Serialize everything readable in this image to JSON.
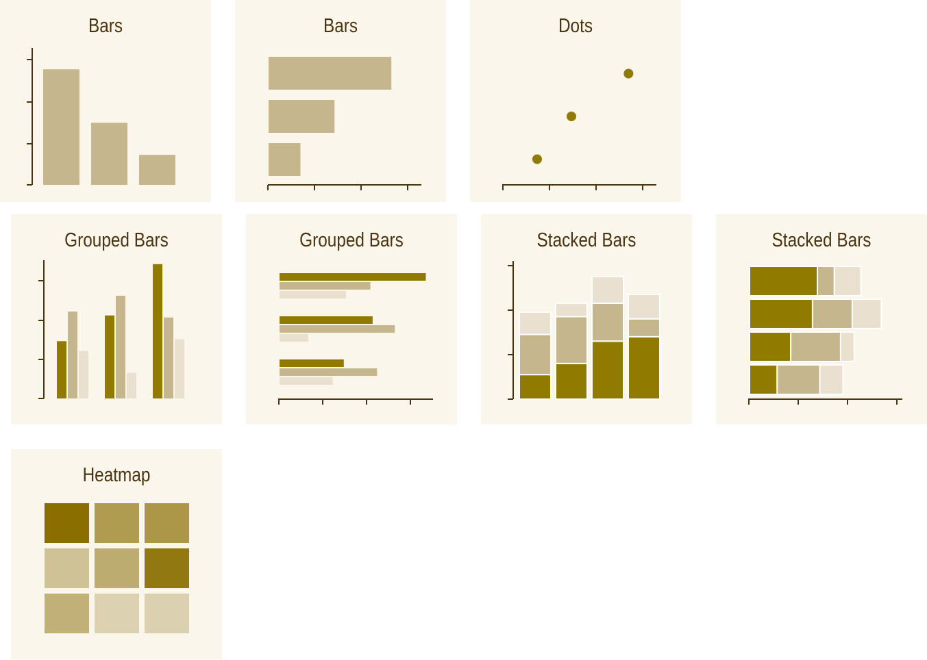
{
  "colors": {
    "panel_bg": "#fbf6ec",
    "axis": "#4a3410",
    "title": "#4a3410",
    "dark": "#917a00",
    "mid": "#c5b68e",
    "light": "#e9e0cf"
  },
  "chart_data": [
    {
      "type": "bar",
      "title": "Bars",
      "orientation": "vertical",
      "categories": [
        "",
        "",
        ""
      ],
      "values": [
        2.7,
        1.45,
        0.7
      ],
      "ylim": [
        0,
        3.2
      ],
      "grid": false
    },
    {
      "type": "bar",
      "title": "Bars",
      "orientation": "horizontal",
      "categories": [
        "",
        "",
        ""
      ],
      "values": [
        2.7,
        1.45,
        0.7
      ],
      "xlim": [
        0,
        3.3
      ],
      "grid": false
    },
    {
      "type": "scatter",
      "title": "Dots",
      "x": [
        0.75,
        1.5,
        2.75
      ],
      "y": [
        0.6,
        1.6,
        2.6
      ],
      "xlim": [
        0,
        3.3
      ],
      "ylim": [
        0,
        3.2
      ],
      "grid": false
    },
    {
      "type": "bar",
      "title": "Grouped Bars",
      "orientation": "vertical",
      "categories": [
        "",
        "",
        ""
      ],
      "series": [
        {
          "values": [
            1.45,
            2.1,
            3.4
          ]
        },
        {
          "values": [
            2.2,
            2.6,
            2.05
          ]
        },
        {
          "values": [
            1.2,
            0.65,
            1.5
          ]
        }
      ],
      "ylim": [
        0,
        3.5
      ],
      "grid": false
    },
    {
      "type": "bar",
      "title": "Grouped Bars",
      "orientation": "horizontal",
      "categories": [
        "",
        "",
        ""
      ],
      "series": [
        {
          "values": [
            3.3,
            2.1,
            1.45
          ]
        },
        {
          "values": [
            2.05,
            2.6,
            2.2
          ]
        },
        {
          "values": [
            1.5,
            0.65,
            1.2
          ]
        }
      ],
      "xlim": [
        0,
        3.5
      ],
      "grid": false
    },
    {
      "type": "bar",
      "title": "Stacked Bars",
      "orientation": "vertical",
      "stacked": true,
      "categories": [
        "",
        "",
        "",
        ""
      ],
      "series": [
        {
          "values": [
            0.55,
            0.8,
            1.3,
            1.4
          ]
        },
        {
          "values": [
            0.9,
            1.05,
            0.85,
            0.4
          ]
        },
        {
          "values": [
            0.5,
            0.3,
            0.6,
            0.55
          ]
        }
      ],
      "ylim": [
        0,
        3.1
      ],
      "grid": false
    },
    {
      "type": "bar",
      "title": "Stacked Bars",
      "orientation": "horizontal",
      "stacked": true,
      "categories": [
        "",
        "",
        "",
        ""
      ],
      "series": [
        {
          "values": [
            1.4,
            1.3,
            0.85,
            0.57
          ]
        },
        {
          "values": [
            0.35,
            0.82,
            1.03,
            0.88
          ]
        },
        {
          "values": [
            0.55,
            0.6,
            0.28,
            0.48
          ]
        }
      ],
      "xlim": [
        0,
        3.1
      ],
      "grid": false
    },
    {
      "type": "heatmap",
      "title": "Heatmap",
      "rows": 3,
      "cols": 3,
      "values": [
        [
          1.0,
          0.62,
          0.66
        ],
        [
          0.3,
          0.48,
          0.92
        ],
        [
          0.44,
          0.17,
          0.18
        ]
      ]
    }
  ]
}
